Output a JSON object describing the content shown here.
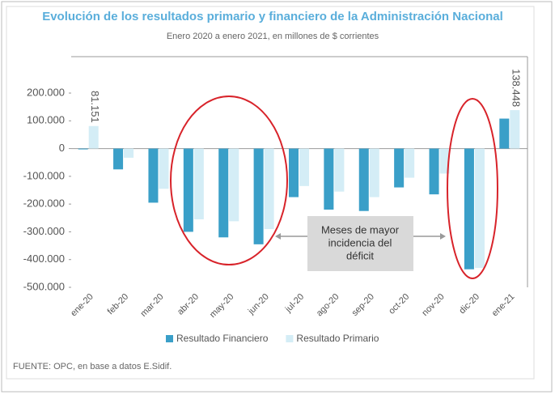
{
  "chart_data": {
    "type": "bar",
    "title": "Evolución de los resultados primario y financiero de la Administración Nacional",
    "subtitle": "Enero 2020 a enero 2021, en millones de $ corrientes",
    "categories": [
      "ene-20",
      "feb-20",
      "mar-20",
      "abr-20",
      "may-20",
      "jun-20",
      "jul-20",
      "ago-20",
      "sep-20",
      "oct-20",
      "nov-20",
      "dic-20",
      "ene-21"
    ],
    "series": [
      {
        "name": "Resultado Financiero",
        "color": "#3a9fc8",
        "values": [
          -3000,
          -75000,
          -195000,
          -300000,
          -320000,
          -345000,
          -175000,
          -220000,
          -225000,
          -140000,
          -165000,
          -435000,
          108000
        ]
      },
      {
        "name": "Resultado Primario",
        "color": "#d4edf6",
        "values": [
          81151,
          -33000,
          -145000,
          -255000,
          -262000,
          -290000,
          -135000,
          -155000,
          -175000,
          -105000,
          -90000,
          -430000,
          138448
        ],
        "value_labels": [
          "81.151",
          null,
          null,
          null,
          null,
          null,
          null,
          null,
          null,
          null,
          null,
          null,
          "138.448"
        ]
      }
    ],
    "ylim": [
      -500000,
      200000
    ],
    "yticks": [
      {
        "value": 200000,
        "label": "200.000"
      },
      {
        "value": 100000,
        "label": "100.000"
      },
      0,
      {
        "value": -100000,
        "label": "-100.000"
      },
      {
        "value": -200000,
        "label": "-200.000"
      },
      {
        "value": -300000,
        "label": "-300.000"
      },
      {
        "value": -400000,
        "label": "-400.000"
      },
      {
        "value": -500000,
        "label": "-500.000"
      }
    ],
    "annotation": [
      "Meses de mayor",
      "incidencia del",
      "déficit"
    ],
    "source": "FUENTE: OPC, en base a datos E.Sidif.",
    "legend": "bottom"
  }
}
